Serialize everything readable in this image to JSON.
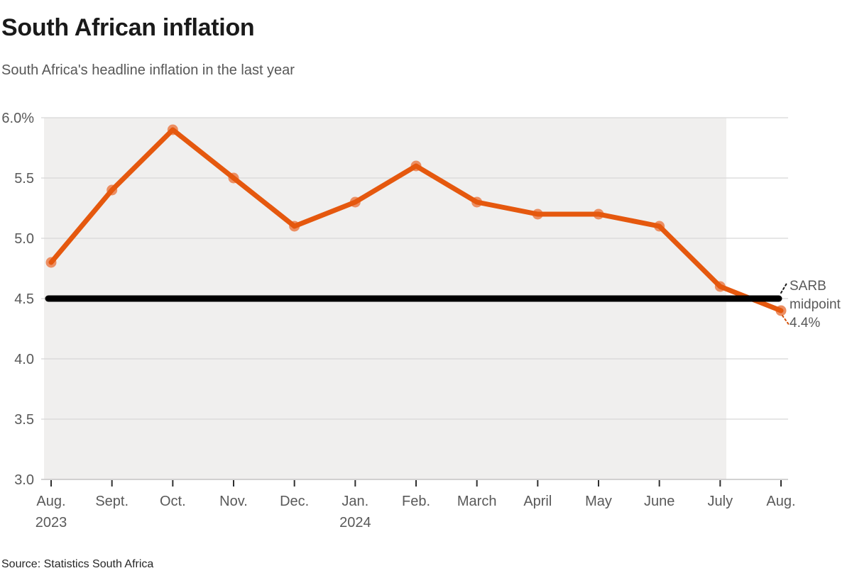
{
  "header": {
    "title": "South African inflation",
    "subtitle": "South Africa's headline inflation in the last year"
  },
  "chart_data": {
    "type": "line",
    "title": "South African inflation",
    "categories": [
      "Aug.",
      "Sept.",
      "Oct.",
      "Nov.",
      "Dec.",
      "Jan.",
      "Feb.",
      "March",
      "April",
      "May",
      "June",
      "July",
      "Aug."
    ],
    "category_years": {
      "0": "2023",
      "5": "2024"
    },
    "series": [
      {
        "name": "Headline inflation (%)",
        "values": [
          4.8,
          5.4,
          5.9,
          5.5,
          5.1,
          5.3,
          5.6,
          5.3,
          5.2,
          5.2,
          5.1,
          4.6,
          4.4
        ]
      }
    ],
    "ylim": [
      3.0,
      6.0
    ],
    "yticks": [
      {
        "value": 6.0,
        "label": "6.0%"
      },
      {
        "value": 5.5,
        "label": "5.5"
      },
      {
        "value": 5.0,
        "label": "5.0"
      },
      {
        "value": 4.5,
        "label": "4.5"
      },
      {
        "value": 4.0,
        "label": "4.0"
      },
      {
        "value": 3.5,
        "label": "3.5"
      },
      {
        "value": 3.0,
        "label": "3.0"
      }
    ],
    "grid": true,
    "legend": "none",
    "reference_line": {
      "value": 4.5,
      "label": "SARB midpoint"
    },
    "annotation": {
      "lines": [
        "SARB",
        "midpoint",
        "4.4%"
      ]
    },
    "colors": {
      "line": "#e5580e",
      "marker": "#ec8f63",
      "reference": "#000000",
      "plot_bg": "#f0efee",
      "gridline": "#d8d8d8",
      "axis_line": "#c4c4c4",
      "tick": "#2f2f2f",
      "axis_label": "#595959",
      "annotation_text": "#595959"
    }
  },
  "source": "Source: Statistics South Africa"
}
